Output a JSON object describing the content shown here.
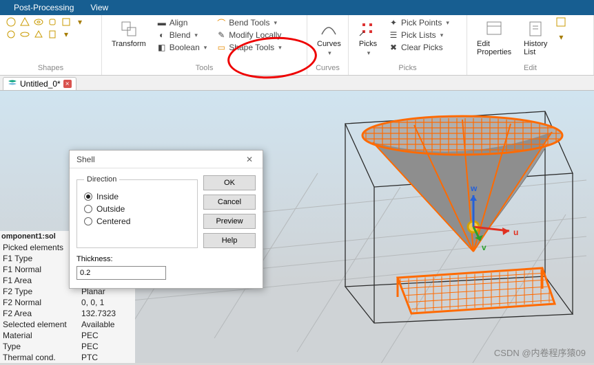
{
  "menubar": {
    "postproc": "Post-Processing",
    "view": "View"
  },
  "ribbon": {
    "groups": {
      "shapes": "Shapes",
      "tools": "Tools",
      "curves": "Curves",
      "picks": "Picks",
      "edit": "Edit"
    },
    "transform": "Transform",
    "align": "Align",
    "blend": "Blend",
    "boolean": "Boolean",
    "bend": "Bend Tools",
    "modify": "Modify Locally",
    "shape_tools": "Shape Tools",
    "curves_btn": "Curves",
    "picks_btn": "Picks",
    "pick_points": "Pick Points",
    "pick_lists": "Pick Lists",
    "clear_picks": "Clear Picks",
    "edit_props": "Edit\nProperties",
    "history": "History\nList",
    "shape_icon_colors": {
      "gold": "#c99a00",
      "orange": "#e78b00"
    }
  },
  "tab": {
    "name": "Untitled_0*",
    "icon_color": "#00a07a"
  },
  "dialog": {
    "title": "Shell",
    "direction_label": "Direction",
    "inside": "Inside",
    "outside": "Outside",
    "centered": "Centered",
    "ok": "OK",
    "cancel": "Cancel",
    "preview": "Preview",
    "help": "Help",
    "thickness_label": "Thickness:",
    "thickness_value": "0.2"
  },
  "info": {
    "head": "omponent1:sol",
    "rows": [
      {
        "k": "Picked elements",
        "v": ""
      },
      {
        "k": " F1 Type",
        "v": ""
      },
      {
        "k": " F1 Normal",
        "v": ""
      },
      {
        "k": " F1 Area",
        "v": ""
      },
      {
        "k": " F2 Type",
        "v": "Planar"
      },
      {
        "k": " F2 Normal",
        "v": "0, 0, 1"
      },
      {
        "k": " F2 Area",
        "v": "132.7323"
      },
      {
        "k": "Selected element",
        "v": "Available"
      },
      {
        "k": " Material",
        "v": "PEC"
      },
      {
        "k": " Type",
        "v": "PEC"
      },
      {
        "k": " Thermal cond.",
        "v": "PTC"
      }
    ]
  },
  "scene": {
    "bg_grid_color": "#b5b9bb",
    "box_edge": "#2b2b2b",
    "mesh_color": "#ff6a00",
    "cone_fill": "#8e8e8e",
    "axis": {
      "u": "u",
      "v": "v",
      "w": "w",
      "u_color": "#e03020",
      "v_color": "#2aa02a",
      "w_color": "#2560d8"
    }
  },
  "watermark": "CSDN @内卷程序猿09"
}
